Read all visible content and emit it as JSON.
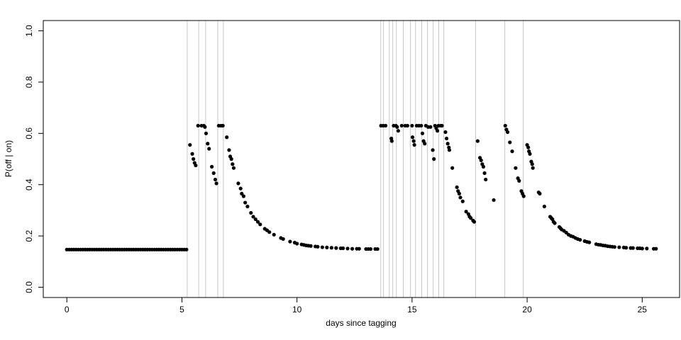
{
  "chart_data": {
    "type": "scatter",
    "x_label": "days since tagging",
    "y_label": "P(off | on)",
    "xlim": [
      -1.024,
      26.624
    ],
    "ylim": [
      -0.04,
      1.04
    ],
    "xticks": [
      0,
      5,
      10,
      15,
      20,
      25
    ],
    "yticks": [
      {
        "value": 0,
        "label": "0.0"
      },
      {
        "value": 0.2,
        "label": "0.2"
      },
      {
        "value": 0.4,
        "label": "0.4"
      },
      {
        "value": 0.6,
        "label": "0.6"
      },
      {
        "value": 0.8,
        "label": "0.8"
      },
      {
        "value": 1,
        "label": "1.0"
      }
    ],
    "color": "#000000",
    "vline_color": "#c8c8c8",
    "vlines": [
      5.23,
      5.73,
      6.03,
      6.56,
      6.8,
      13.64,
      13.76,
      14.01,
      14.16,
      14.32,
      14.62,
      14.93,
      15.15,
      15.42,
      15.67,
      15.92,
      16.16,
      16.38,
      17.76,
      19.03,
      19.83
    ],
    "x": [
      0.0,
      0.1,
      0.2,
      0.3,
      0.4,
      0.5,
      0.6,
      0.7,
      0.8,
      0.9,
      1.0,
      1.1,
      1.2,
      1.3,
      1.4,
      1.5,
      1.6,
      1.7,
      1.8,
      1.9,
      2.0,
      2.1,
      2.2,
      2.3,
      2.4,
      2.5,
      2.6,
      2.7,
      2.8,
      2.9,
      3.0,
      3.1,
      3.2,
      3.3,
      3.4,
      3.5,
      3.6,
      3.7,
      3.8,
      3.9,
      4.0,
      4.1,
      4.2,
      4.3,
      4.4,
      4.5,
      4.6,
      4.7,
      4.8,
      4.9,
      5.0,
      5.1,
      5.2,
      5.35,
      5.45,
      5.5,
      5.55,
      5.6,
      5.7,
      5.85,
      5.95,
      6.0,
      6.05,
      6.12,
      6.18,
      6.3,
      6.38,
      6.45,
      6.5,
      6.6,
      6.7,
      6.78,
      6.95,
      7.05,
      7.1,
      7.15,
      7.2,
      7.25,
      7.45,
      7.55,
      7.6,
      7.68,
      7.75,
      7.85,
      8.0,
      8.1,
      8.2,
      8.3,
      8.4,
      8.6,
      8.7,
      8.8,
      9.0,
      9.3,
      9.4,
      9.7,
      9.9,
      10.0,
      10.2,
      10.3,
      10.4,
      10.5,
      10.6,
      10.8,
      10.9,
      11.1,
      11.3,
      11.5,
      11.7,
      11.9,
      12.0,
      12.2,
      12.4,
      12.6,
      12.7,
      13.0,
      13.1,
      13.2,
      13.4,
      13.5,
      13.65,
      13.75,
      13.85,
      14.1,
      14.12,
      14.2,
      14.3,
      14.35,
      14.4,
      14.55,
      14.7,
      14.8,
      15.0,
      15.02,
      15.07,
      15.1,
      15.2,
      15.3,
      15.4,
      15.45,
      15.5,
      15.55,
      15.6,
      15.7,
      15.8,
      15.9,
      15.95,
      16.0,
      16.05,
      16.1,
      16.15,
      16.25,
      16.3,
      16.45,
      16.5,
      16.55,
      16.6,
      16.62,
      16.75,
      16.95,
      17.0,
      17.05,
      17.1,
      17.2,
      17.35,
      17.45,
      17.5,
      17.55,
      17.65,
      17.7,
      17.85,
      17.95,
      18.0,
      18.05,
      18.1,
      18.15,
      18.2,
      18.55,
      19.05,
      19.1,
      19.15,
      19.25,
      19.35,
      19.5,
      19.6,
      19.65,
      19.75,
      19.8,
      19.85,
      20.0,
      20.05,
      20.08,
      20.12,
      20.18,
      20.22,
      20.25,
      20.5,
      20.55,
      20.75,
      21.0,
      21.05,
      21.1,
      21.15,
      21.2,
      21.4,
      21.45,
      21.5,
      21.6,
      21.7,
      21.8,
      21.9,
      22.0,
      22.1,
      22.2,
      22.3,
      22.5,
      22.6,
      22.7,
      23.0,
      23.1,
      23.2,
      23.3,
      23.4,
      23.5,
      23.6,
      23.7,
      23.8,
      24.0,
      24.2,
      24.3,
      24.5,
      24.6,
      24.8,
      24.9,
      25.0,
      25.2,
      25.5,
      25.6
    ],
    "values": [
      0.147,
      0.147,
      0.147,
      0.147,
      0.147,
      0.147,
      0.147,
      0.147,
      0.147,
      0.147,
      0.147,
      0.147,
      0.147,
      0.147,
      0.147,
      0.147,
      0.147,
      0.147,
      0.147,
      0.147,
      0.147,
      0.147,
      0.147,
      0.147,
      0.147,
      0.147,
      0.147,
      0.147,
      0.147,
      0.147,
      0.147,
      0.147,
      0.147,
      0.147,
      0.147,
      0.147,
      0.147,
      0.147,
      0.147,
      0.147,
      0.147,
      0.147,
      0.147,
      0.147,
      0.147,
      0.147,
      0.147,
      0.147,
      0.147,
      0.147,
      0.147,
      0.147,
      0.147,
      0.555,
      0.52,
      0.5,
      0.485,
      0.475,
      0.63,
      0.63,
      0.63,
      0.625,
      0.6,
      0.56,
      0.54,
      0.47,
      0.445,
      0.42,
      0.405,
      0.63,
      0.63,
      0.63,
      0.585,
      0.535,
      0.51,
      0.5,
      0.48,
      0.465,
      0.405,
      0.385,
      0.365,
      0.355,
      0.33,
      0.315,
      0.29,
      0.275,
      0.265,
      0.255,
      0.245,
      0.228,
      0.222,
      0.215,
      0.205,
      0.192,
      0.188,
      0.178,
      0.174,
      0.17,
      0.167,
      0.165,
      0.163,
      0.162,
      0.161,
      0.159,
      0.158,
      0.156,
      0.155,
      0.154,
      0.153,
      0.152,
      0.152,
      0.151,
      0.15,
      0.15,
      0.15,
      0.149,
      0.149,
      0.149,
      0.149,
      0.149,
      0.63,
      0.63,
      0.63,
      0.58,
      0.57,
      0.63,
      0.63,
      0.625,
      0.61,
      0.63,
      0.63,
      0.63,
      0.63,
      0.585,
      0.57,
      0.555,
      0.63,
      0.63,
      0.63,
      0.6,
      0.57,
      0.56,
      0.63,
      0.625,
      0.625,
      0.535,
      0.5,
      0.63,
      0.62,
      0.61,
      0.63,
      0.63,
      0.63,
      0.605,
      0.58,
      0.56,
      0.545,
      0.535,
      0.465,
      0.39,
      0.375,
      0.365,
      0.35,
      0.335,
      0.295,
      0.285,
      0.275,
      0.27,
      0.26,
      0.255,
      0.57,
      0.505,
      0.495,
      0.48,
      0.47,
      0.445,
      0.42,
      0.34,
      0.63,
      0.615,
      0.605,
      0.565,
      0.53,
      0.465,
      0.425,
      0.415,
      0.375,
      0.365,
      0.355,
      0.555,
      0.545,
      0.53,
      0.52,
      0.49,
      0.48,
      0.465,
      0.37,
      0.365,
      0.315,
      0.275,
      0.27,
      0.265,
      0.255,
      0.25,
      0.235,
      0.23,
      0.225,
      0.22,
      0.213,
      0.205,
      0.2,
      0.197,
      0.192,
      0.188,
      0.185,
      0.18,
      0.177,
      0.175,
      0.168,
      0.166,
      0.165,
      0.163,
      0.162,
      0.16,
      0.159,
      0.158,
      0.157,
      0.156,
      0.155,
      0.154,
      0.153,
      0.153,
      0.152,
      0.152,
      0.151,
      0.151,
      0.15,
      0.15
    ]
  }
}
